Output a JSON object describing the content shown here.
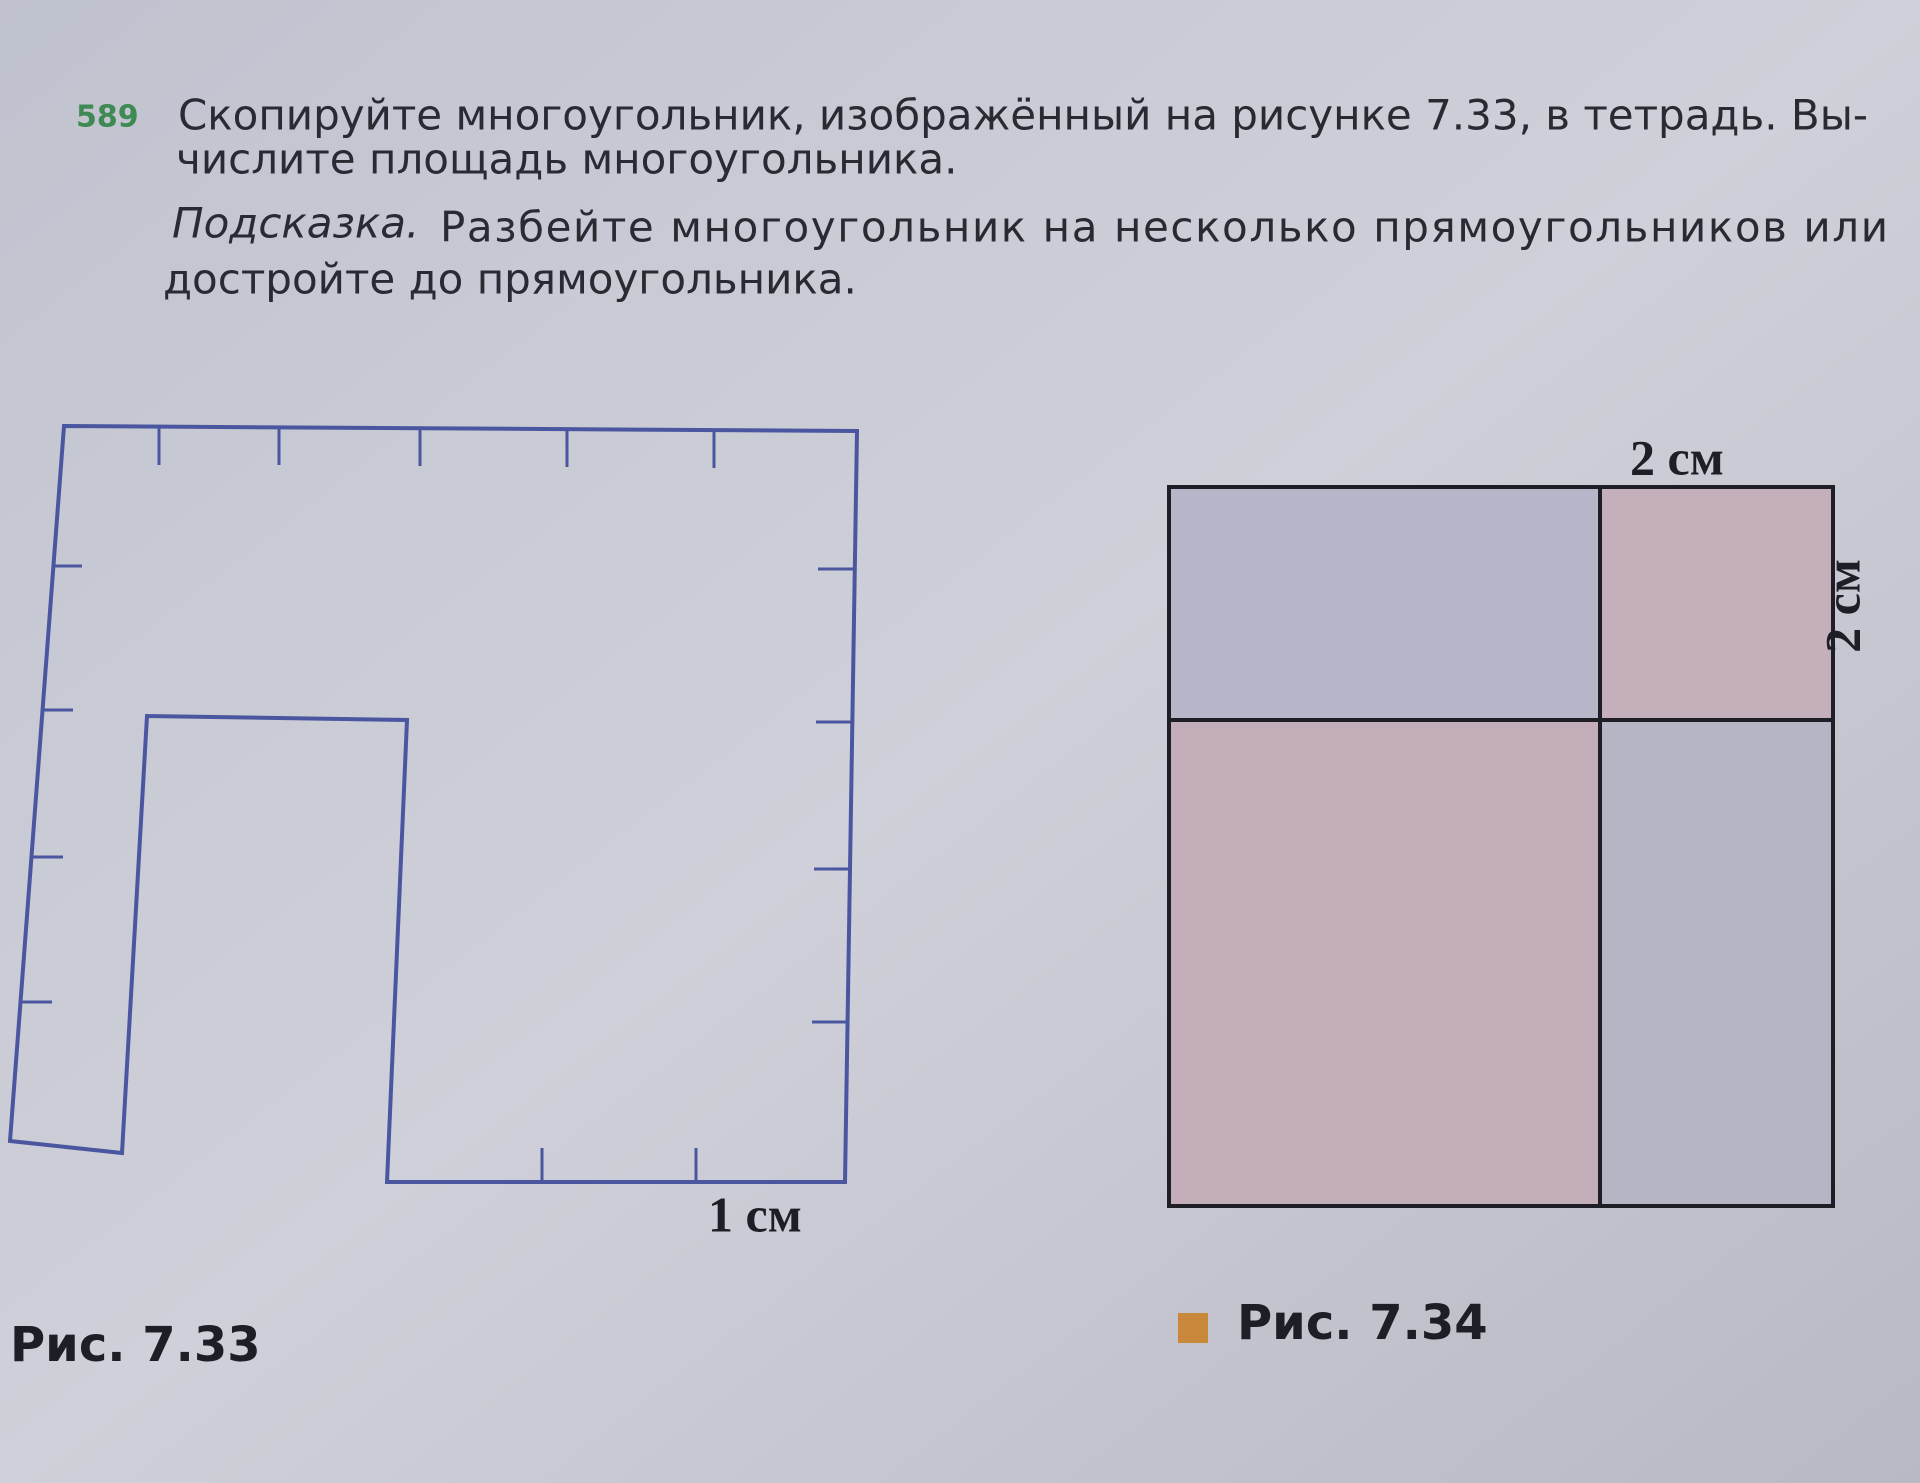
{
  "problem": {
    "number": "589",
    "lines": [
      "Скопируйте многоугольник, изображённый на рисунке 7.33, в тетрадь. Вы-",
      "числите площадь многоугольника."
    ]
  },
  "hint": {
    "label": "Подсказка.",
    "lines": [
      "Разбейте многоугольник на несколько прямоугольников или",
      "достройте до прямоугольника."
    ]
  },
  "figures": [
    {
      "unit_label": "1 см",
      "caption": "Рис. 7.33"
    },
    {
      "top_label": "2 см",
      "side_label": "2 см",
      "caption": "Рис. 7.34"
    }
  ]
}
